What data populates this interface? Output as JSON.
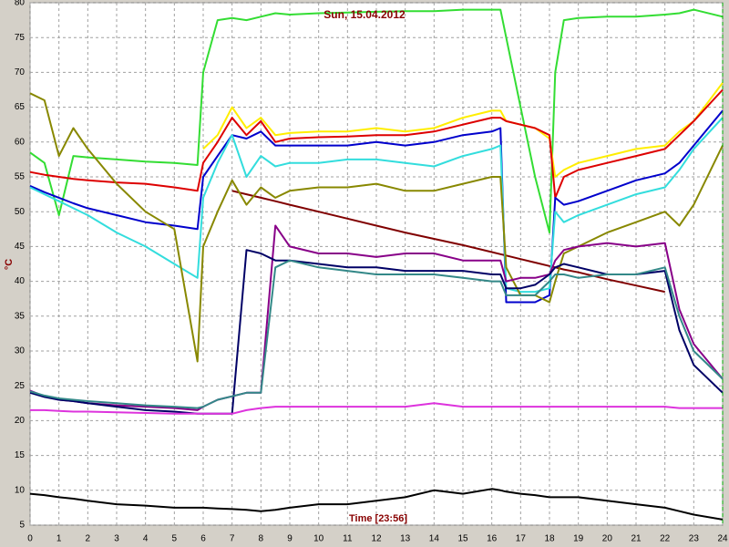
{
  "chart_data": {
    "type": "line",
    "title": "Sun, 15.04.2012",
    "x_label": "Time [23:56]",
    "y_label": "°C",
    "x": [
      0,
      0.5,
      1,
      1.5,
      2,
      3,
      4,
      5,
      5.8,
      6,
      6.5,
      7,
      7.5,
      8,
      8.5,
      9,
      10,
      11,
      12,
      13,
      14,
      15,
      16,
      16.3,
      16.5,
      17,
      17.5,
      18,
      18.2,
      18.5,
      19,
      20,
      21,
      22,
      22.5,
      23,
      24
    ],
    "xlim": [
      0,
      24
    ],
    "xticks": [
      0,
      1,
      2,
      3,
      4,
      5,
      6,
      7,
      8,
      9,
      10,
      11,
      12,
      13,
      14,
      15,
      16,
      17,
      18,
      19,
      20,
      21,
      22,
      23,
      24
    ],
    "ylim": [
      5,
      80
    ],
    "yticks": [
      5,
      10,
      15,
      20,
      25,
      30,
      35,
      40,
      45,
      50,
      55,
      60,
      65,
      70,
      75,
      80
    ],
    "grid": true,
    "series": [
      {
        "color": "#33dd33",
        "values": [
          58.5,
          57,
          49.5,
          58,
          57.8,
          57.5,
          57.2,
          57,
          56.7,
          70,
          77.5,
          77.8,
          77.5,
          78,
          78.5,
          78.3,
          78.5,
          78.6,
          78.7,
          78.8,
          78.8,
          79,
          79,
          79,
          75,
          65,
          55,
          47,
          70,
          77.5,
          77.8,
          78,
          78,
          78.3,
          78.5,
          79,
          78
        ]
      },
      {
        "color": "#ffee00",
        "values": [
          null,
          null,
          null,
          null,
          null,
          null,
          null,
          null,
          null,
          59,
          61,
          65,
          62,
          63.5,
          61,
          61.3,
          61.5,
          61.5,
          62,
          61.5,
          62,
          63.5,
          64.5,
          64.5,
          63,
          62.5,
          62,
          60.5,
          55,
          56,
          57,
          58,
          59,
          59.5,
          61.5,
          63,
          68.5
        ]
      },
      {
        "color": "#dd0000",
        "values": [
          55.7,
          55.3,
          55,
          54.7,
          54.5,
          54.2,
          54,
          53.5,
          53,
          57,
          60,
          63.5,
          61,
          63,
          60,
          60.5,
          60.7,
          60.8,
          61,
          61,
          61.5,
          62.5,
          63.5,
          63.5,
          63,
          62.5,
          62,
          61,
          52,
          55,
          56,
          57,
          58,
          59,
          61,
          63,
          67.5
        ]
      },
      {
        "color": "#800000",
        "values": [
          null,
          null,
          null,
          null,
          null,
          null,
          null,
          null,
          null,
          null,
          null,
          53,
          52.5,
          52,
          51.5,
          51,
          50,
          49,
          48,
          47,
          46.1,
          45.2,
          44.2,
          43.9,
          43.7,
          43.2,
          42.7,
          42.2,
          42,
          41.7,
          41.3,
          40.3,
          39.4,
          38.5,
          null,
          null,
          null
        ]
      },
      {
        "color": "#0000cc",
        "values": [
          53.7,
          52.8,
          52,
          51.2,
          50.5,
          49.5,
          48.5,
          48,
          47.5,
          55,
          58,
          61,
          60.5,
          61.5,
          59.5,
          59.5,
          59.5,
          59.5,
          60,
          59.5,
          60,
          61,
          61.5,
          62,
          37,
          37,
          37,
          38,
          52,
          51,
          51.5,
          53,
          54.5,
          55.5,
          57,
          59.5,
          64.5
        ]
      },
      {
        "color": "#33dddd",
        "values": [
          53.5,
          52.5,
          51.5,
          50.5,
          49.5,
          47,
          45,
          42.5,
          40.5,
          52,
          57,
          61,
          55,
          58,
          56.5,
          57,
          57,
          57.5,
          57.5,
          57,
          56.5,
          58,
          59,
          59.5,
          39,
          38.5,
          38.5,
          39,
          50,
          48.5,
          49.5,
          51,
          52.5,
          53.5,
          56,
          59,
          63.5
        ]
      },
      {
        "color": "#888800",
        "values": [
          67,
          66,
          58,
          62,
          59,
          54,
          50,
          47.5,
          28.5,
          45,
          50,
          54.5,
          51,
          53.5,
          52,
          53,
          53.5,
          53.5,
          54,
          53,
          53,
          54,
          55,
          55,
          42,
          38,
          38,
          37,
          40,
          44,
          45,
          47,
          48.5,
          50,
          48,
          51,
          59.5
        ]
      },
      {
        "color": "#880088",
        "values": [
          24.3,
          23.5,
          23,
          22.8,
          22.5,
          22.2,
          22,
          21.8,
          21.5,
          22,
          23,
          23.5,
          24,
          24,
          48,
          45,
          44,
          44,
          43.5,
          44,
          44,
          43,
          43,
          43,
          40,
          40.5,
          40.5,
          41,
          43,
          44.5,
          45,
          45.5,
          45,
          45.5,
          36,
          31,
          26
        ]
      },
      {
        "color": "#000066",
        "values": [
          24,
          23.4,
          23,
          22.8,
          22.5,
          22,
          21.5,
          21.3,
          21,
          21,
          21,
          21,
          44.5,
          44,
          43,
          43,
          42.5,
          42,
          42,
          41.5,
          41.5,
          41.5,
          41,
          41,
          39,
          39,
          39.5,
          41,
          42,
          42.5,
          42,
          41,
          41,
          41.5,
          33,
          28,
          24
        ]
      },
      {
        "color": "#338888",
        "values": [
          24.2,
          23.6,
          23.2,
          23,
          22.8,
          22.5,
          22.2,
          22,
          21.8,
          22,
          23,
          23.5,
          24,
          24,
          42,
          43,
          42,
          41.5,
          41,
          41,
          41,
          40.5,
          40,
          40,
          38,
          38,
          38,
          40,
          41,
          41,
          40.5,
          41,
          41,
          42,
          35,
          30,
          26
        ]
      },
      {
        "color": "#dd33dd",
        "values": [
          21.5,
          21.5,
          21.4,
          21.3,
          21.3,
          21.2,
          21.1,
          21,
          21,
          21,
          21,
          21,
          21.5,
          21.8,
          22,
          22,
          22,
          22,
          22,
          22,
          22.5,
          22,
          22,
          22,
          22,
          22,
          22,
          22,
          22,
          22,
          22,
          22,
          22,
          22,
          21.8,
          21.8,
          21.8
        ]
      },
      {
        "color": "#000000",
        "values": [
          9.5,
          9.3,
          9,
          8.8,
          8.5,
          8,
          7.8,
          7.5,
          7.5,
          7.5,
          7.4,
          7.3,
          7.2,
          7,
          7.2,
          7.5,
          8,
          8,
          8.5,
          9,
          10,
          9.5,
          10.2,
          10,
          9.8,
          9.5,
          9.3,
          9,
          9,
          9,
          9,
          8.5,
          8,
          7.5,
          7,
          6.5,
          5.8
        ]
      }
    ]
  }
}
